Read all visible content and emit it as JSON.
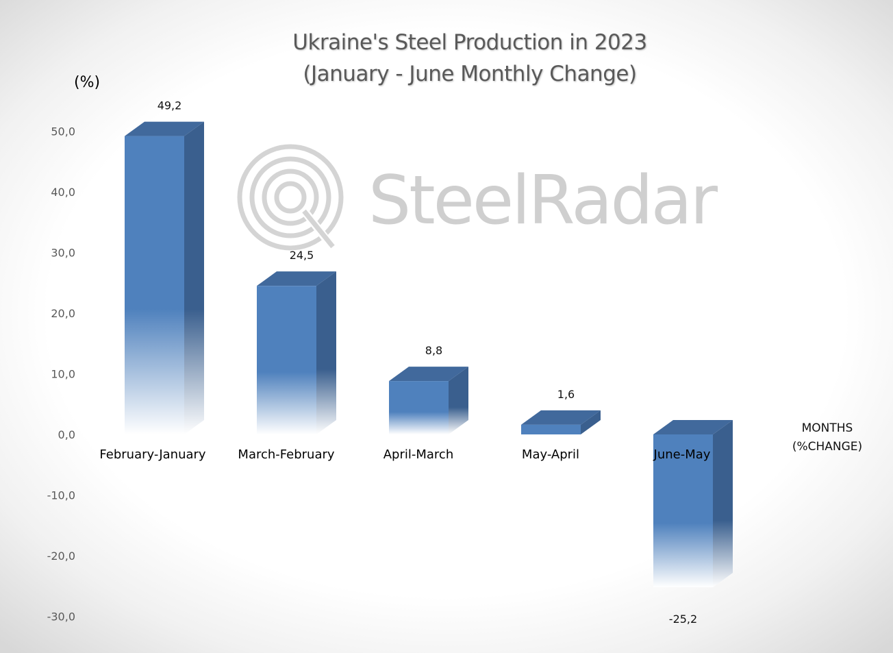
{
  "colors": {
    "bar_front": "#4f81bd",
    "bar_side": "#3a5f8e",
    "bar_top": "#41699c",
    "watermark": "#d0d0d0"
  },
  "watermark": {
    "brand": "SteelRadar",
    "icon": "radar-logo-icon"
  },
  "chart_data": {
    "type": "bar",
    "title": "Ukraine's Steel Production in 2023",
    "subtitle": "(January - June Monthly Change)",
    "ylabel": "(%)",
    "xlabel_line1": "MONTHS",
    "xlabel_line2": "(%CHANGE)",
    "categories": [
      "February-January",
      "March-February",
      "April-March",
      "May-April",
      "June-May"
    ],
    "values": [
      49.2,
      24.5,
      8.8,
      1.6,
      -25.2
    ],
    "data_labels": [
      "49,2",
      "24,5",
      "8,8",
      "1,6",
      "-25,2"
    ],
    "ylim": [
      -30,
      50
    ],
    "yticks": [
      50,
      40,
      30,
      20,
      10,
      0,
      -10,
      -20,
      -30
    ],
    "ytick_labels": [
      "50,0",
      "40,0",
      "30,0",
      "20,0",
      "10,0",
      "0,0",
      "-10,0",
      "-20,0",
      "-30,0"
    ],
    "grid": false,
    "legend": "none"
  }
}
